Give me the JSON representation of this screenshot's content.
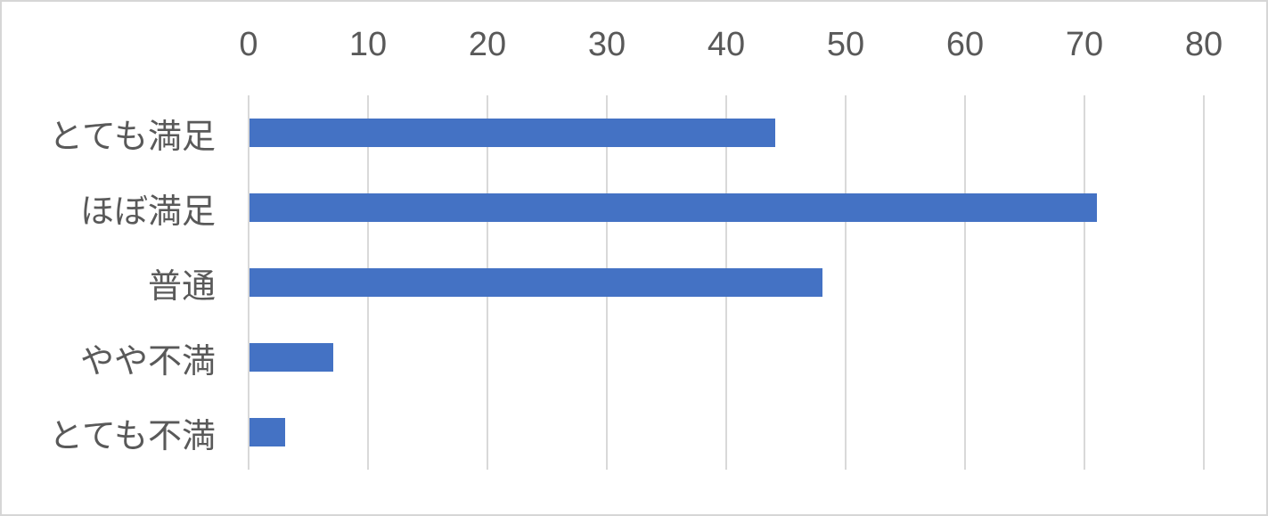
{
  "chart_data": {
    "type": "bar",
    "orientation": "horizontal",
    "title": "",
    "xlabel": "",
    "ylabel": "",
    "categories": [
      "とても満足",
      "ほぼ満足",
      "普通",
      "やや不満",
      "とても不満"
    ],
    "values": [
      44,
      71,
      48,
      7,
      3
    ],
    "xlim": [
      0,
      80
    ],
    "x_ticks": [
      "0",
      "10",
      "20",
      "30",
      "40",
      "50",
      "60",
      "70",
      "80"
    ],
    "x_tick_values": [
      0,
      10,
      20,
      30,
      40,
      50,
      60,
      70,
      80
    ],
    "grid": true,
    "legend": false,
    "tick_position": "top",
    "colors": {
      "bar": "#4472c4",
      "gridline": "#d9d9d9",
      "axis_line": "#d9d9d9",
      "tick_label": "#595959",
      "category_label": "#595959",
      "frame_border": "#d6d6d6",
      "background": "#ffffff"
    }
  }
}
